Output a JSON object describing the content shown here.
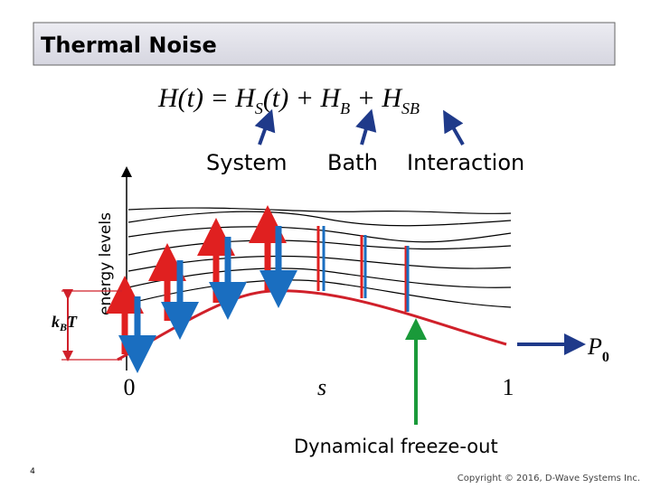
{
  "header": {
    "title": "Thermal Noise"
  },
  "equation": {
    "parts": [
      {
        "text": "H(t) = H",
        "sub": "S"
      },
      {
        "text": "(t) + H",
        "sub": "B"
      },
      {
        "text": " + H",
        "sub": "SB"
      }
    ]
  },
  "labels": {
    "system": "System",
    "bath": "Bath",
    "interaction": "Interaction"
  },
  "axis": {
    "y_label": "energy levels",
    "x_start": "0",
    "x_mid": "s",
    "x_end": "1"
  },
  "kbt": {
    "text": "k",
    "sub": "B",
    "after": "T"
  },
  "p0": {
    "text": "P",
    "sub": "0"
  },
  "freeze_label": "Dynamical freeze-out",
  "footer": {
    "page": "4",
    "copyright": "Copyright © 2016, D-Wave Systems Inc."
  }
}
